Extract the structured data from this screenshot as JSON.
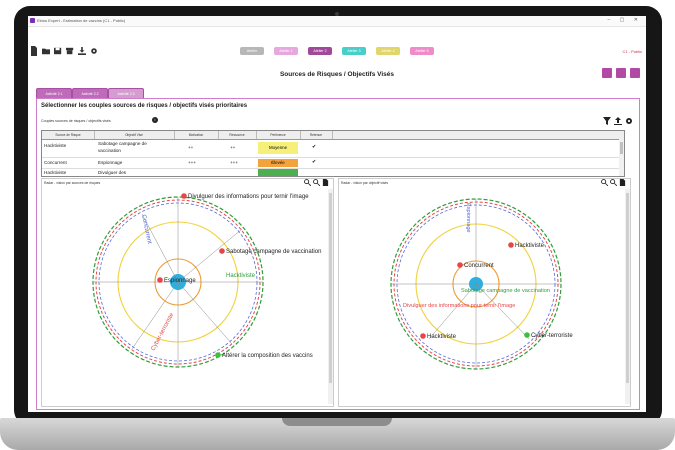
{
  "app": {
    "title": "Ebios Expert - Estimation de vaccins (C1 - Public)",
    "user_label": "C1 - Public"
  },
  "levels": [
    {
      "label": "Atelier",
      "color": "#b7b7b7"
    },
    {
      "label": "Atelier 1",
      "color": "#e7a8e0"
    },
    {
      "label": "Atelier 2",
      "color": "#a2489b"
    },
    {
      "label": "Atelier 3",
      "color": "#49cfc9"
    },
    {
      "label": "Atelier 4",
      "color": "#e2d56a"
    },
    {
      "label": "Atelier 5",
      "color": "#ee8bc8"
    }
  ],
  "page_title": "Sources de Risques / Objectifs Visés",
  "tabs": [
    "Activité 2.1",
    "Activité 2.2",
    "Activité 2.3"
  ],
  "section_title": "Sélectionner les couples sources de risques / objectifs visés prioritaires",
  "group_label": "Couples sources de risques / objectifs visés",
  "table": {
    "headers": [
      "Source de Risque",
      "Objectif Visé",
      "Motivation",
      "Ressource",
      "Pertinence",
      "Retenue"
    ],
    "rows": [
      {
        "source": "Hacktiviste",
        "objectif_1": "Sabotage campagne de",
        "objectif_2": "vaccination",
        "motivation": "++",
        "ressource": "++",
        "pertinence": "Moyenne",
        "pert_color": "#f6f07a",
        "retenue": "✔"
      },
      {
        "source": "Concurrent",
        "objectif_1": "Espionnage",
        "objectif_2": "",
        "motivation": "+++",
        "ressource": "+++",
        "pertinence": "Élevée",
        "pert_color": "#f4a33c",
        "retenue": "✔"
      },
      {
        "source": "Hacktiviste",
        "objectif_1": "Divulguer des",
        "objectif_2": "",
        "motivation": "",
        "ressource": "",
        "pertinence": "",
        "pert_color": "#4caf50",
        "retenue": ""
      }
    ]
  },
  "radar_left": {
    "header": "Radar - vision par sources de risques",
    "points": [
      "Divulguer des informations pour ternir l'image",
      "Sabotage campagne de vaccination",
      "Espionnage",
      "Altérer la composition des vaccins"
    ],
    "axis_labels": [
      "Hacktiviste",
      "Cyber-terroriste",
      "Concurrent"
    ]
  },
  "radar_right": {
    "header": "Radar - vision par objectif visés",
    "points": [
      "Hacktiviste",
      "Concurrent",
      "Hacktiviste",
      "Cyber-terroriste"
    ],
    "axis_labels": [
      "Sabotage campagne de vaccination",
      "Divulguer des informations pour ternir l'image",
      "Espionnage"
    ]
  }
}
